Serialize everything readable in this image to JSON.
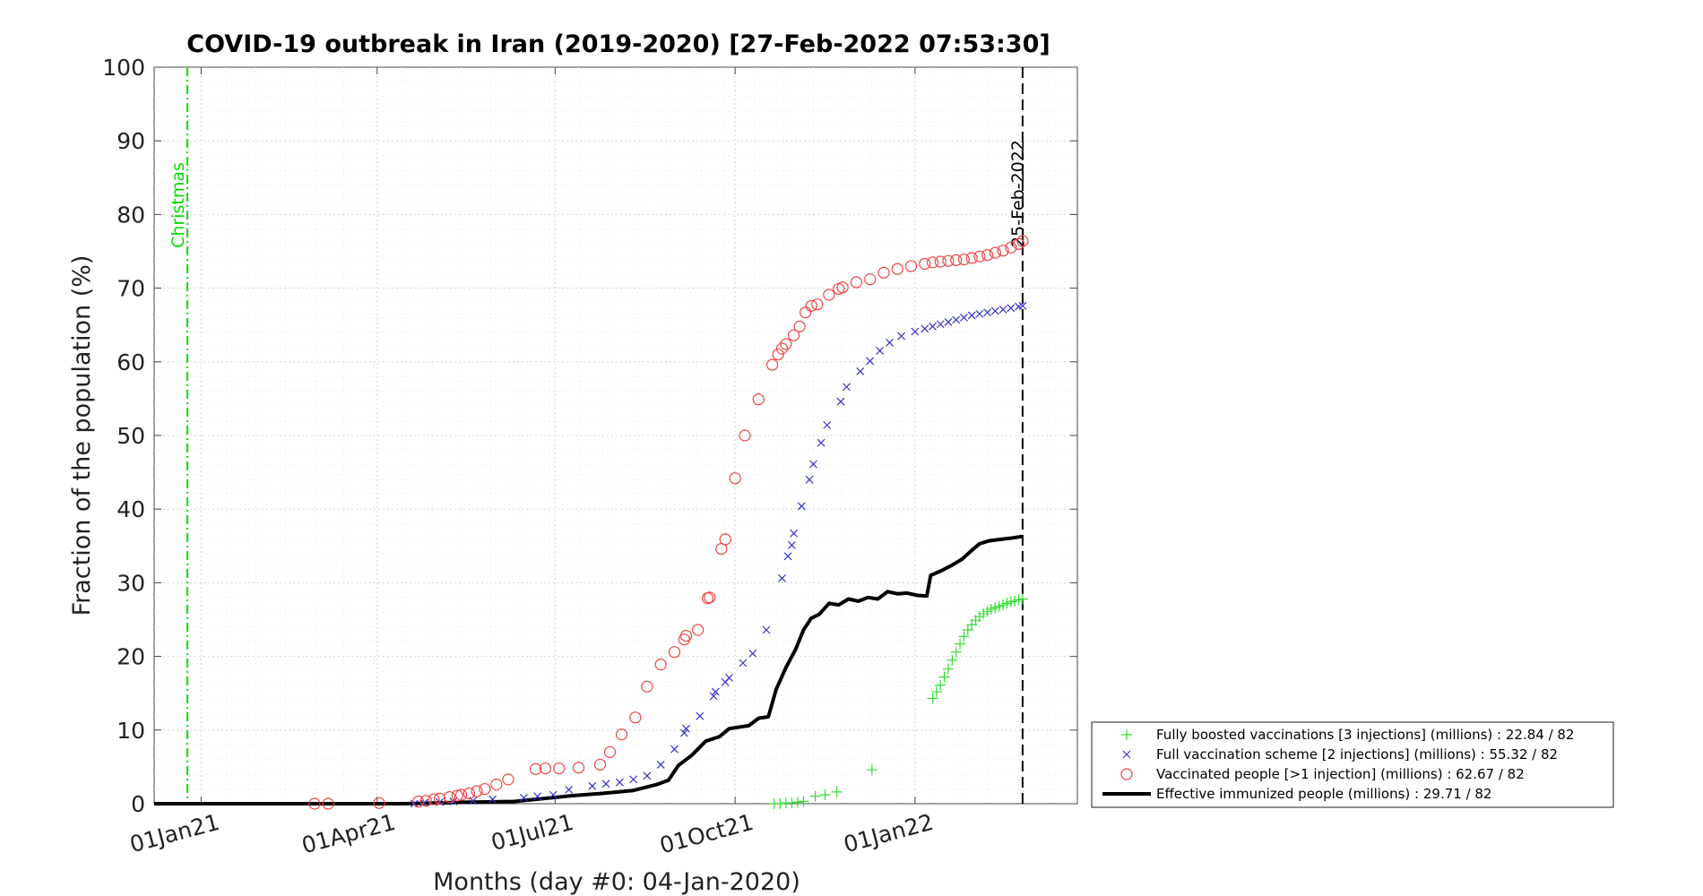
{
  "chart_data": {
    "type": "scatter",
    "title": "COVID-19 outbreak in Iran (2019-2020) [27-Feb-2022 07:53:30]",
    "xlabel": "Months (day #0: 04-Jan-2020)",
    "ylabel": "Fraction of the population (%)",
    "xlim": [
      "2020-12-08",
      "2022-03-25"
    ],
    "ylim": [
      0,
      100
    ],
    "grid": true,
    "legend_position": "outside-bottom-right",
    "x_ticks": [
      {
        "label": "01Jan21",
        "date": "2021-01-01"
      },
      {
        "label": "01Apr21",
        "date": "2021-04-01"
      },
      {
        "label": "01Jul21",
        "date": "2021-07-01"
      },
      {
        "label": "01Oct21",
        "date": "2021-10-01"
      },
      {
        "label": "01Jan22",
        "date": "2022-01-01"
      }
    ],
    "y_ticks": [
      0,
      10,
      20,
      30,
      40,
      50,
      60,
      70,
      80,
      90,
      100
    ],
    "annotations": [
      {
        "label": "Christmas",
        "date": "2020-12-25",
        "style": "dash-dot",
        "color": "#00dd00"
      },
      {
        "label": "25-Feb-2022",
        "date": "2022-02-25",
        "style": "dashed",
        "color": "#000000"
      }
    ],
    "series": [
      {
        "name": "Fully boosted vaccinations [3 injections] (millions) : 22.84 / 82",
        "marker": "plus",
        "color": "#33dd33",
        "points": [
          [
            "2021-10-21",
            0.0
          ],
          [
            "2021-10-24",
            0.0
          ],
          [
            "2021-10-27",
            0.1
          ],
          [
            "2021-10-30",
            0.1
          ],
          [
            "2021-11-02",
            0.2
          ],
          [
            "2021-11-05",
            0.3
          ],
          [
            "2021-11-11",
            1.0
          ],
          [
            "2021-11-16",
            1.2
          ],
          [
            "2021-11-22",
            1.6
          ],
          [
            "2021-12-10",
            4.6
          ],
          [
            "2022-01-10",
            14.3
          ],
          [
            "2022-01-12",
            15.2
          ],
          [
            "2022-01-14",
            16.1
          ],
          [
            "2022-01-16",
            17.2
          ],
          [
            "2022-01-18",
            18.3
          ],
          [
            "2022-01-20",
            19.5
          ],
          [
            "2022-01-22",
            20.6
          ],
          [
            "2022-01-24",
            21.7
          ],
          [
            "2022-01-26",
            22.7
          ],
          [
            "2022-01-28",
            23.6
          ],
          [
            "2022-01-30",
            24.3
          ],
          [
            "2022-02-01",
            24.9
          ],
          [
            "2022-02-03",
            25.4
          ],
          [
            "2022-02-05",
            25.8
          ],
          [
            "2022-02-07",
            26.1
          ],
          [
            "2022-02-09",
            26.4
          ],
          [
            "2022-02-11",
            26.6
          ],
          [
            "2022-02-13",
            26.8
          ],
          [
            "2022-02-15",
            27.0
          ],
          [
            "2022-02-17",
            27.2
          ],
          [
            "2022-02-19",
            27.4
          ],
          [
            "2022-02-21",
            27.5
          ],
          [
            "2022-02-23",
            27.7
          ],
          [
            "2022-02-25",
            27.8
          ]
        ]
      },
      {
        "name": "Full vaccination scheme [2 injections] (millions) : 55.32 / 82",
        "marker": "cross",
        "color": "#3333cc",
        "points": [
          [
            "2021-04-20",
            0.0
          ],
          [
            "2021-04-25",
            0.1
          ],
          [
            "2021-05-03",
            0.2
          ],
          [
            "2021-05-10",
            0.3
          ],
          [
            "2021-05-20",
            0.4
          ],
          [
            "2021-05-30",
            0.6
          ],
          [
            "2021-06-15",
            0.8
          ],
          [
            "2021-06-22",
            1.0
          ],
          [
            "2021-06-30",
            1.2
          ],
          [
            "2021-07-08",
            1.9
          ],
          [
            "2021-07-20",
            2.4
          ],
          [
            "2021-07-27",
            2.7
          ],
          [
            "2021-08-03",
            2.9
          ],
          [
            "2021-08-10",
            3.3
          ],
          [
            "2021-08-17",
            3.8
          ],
          [
            "2021-08-24",
            5.3
          ],
          [
            "2021-08-31",
            7.4
          ],
          [
            "2021-09-05",
            9.6
          ],
          [
            "2021-09-06",
            10.2
          ],
          [
            "2021-09-13",
            11.9
          ],
          [
            "2021-09-20",
            14.6
          ],
          [
            "2021-09-21",
            15.2
          ],
          [
            "2021-09-26",
            16.5
          ],
          [
            "2021-09-28",
            17.1
          ],
          [
            "2021-10-05",
            19.1
          ],
          [
            "2021-10-10",
            20.4
          ],
          [
            "2021-10-17",
            23.6
          ],
          [
            "2021-10-25",
            30.6
          ],
          [
            "2021-10-28",
            33.6
          ],
          [
            "2021-10-30",
            35.1
          ],
          [
            "2021-10-31",
            36.7
          ],
          [
            "2021-11-04",
            40.4
          ],
          [
            "2021-11-08",
            44.0
          ],
          [
            "2021-11-10",
            46.1
          ],
          [
            "2021-11-14",
            49.0
          ],
          [
            "2021-11-17",
            51.4
          ],
          [
            "2021-11-24",
            54.6
          ],
          [
            "2021-11-27",
            56.6
          ],
          [
            "2021-12-04",
            58.7
          ],
          [
            "2021-12-09",
            60.1
          ],
          [
            "2021-12-14",
            61.5
          ],
          [
            "2021-12-19",
            62.6
          ],
          [
            "2021-12-25",
            63.5
          ],
          [
            "2022-01-01",
            64.1
          ],
          [
            "2022-01-06",
            64.5
          ],
          [
            "2022-01-10",
            64.8
          ],
          [
            "2022-01-14",
            65.1
          ],
          [
            "2022-01-18",
            65.4
          ],
          [
            "2022-01-22",
            65.7
          ],
          [
            "2022-01-26",
            66.0
          ],
          [
            "2022-01-30",
            66.3
          ],
          [
            "2022-02-03",
            66.5
          ],
          [
            "2022-02-07",
            66.7
          ],
          [
            "2022-02-11",
            66.9
          ],
          [
            "2022-02-15",
            67.1
          ],
          [
            "2022-02-19",
            67.3
          ],
          [
            "2022-02-23",
            67.5
          ],
          [
            "2022-02-25",
            67.6
          ]
        ]
      },
      {
        "name": "Vaccinated people [>1 injection] (millions) : 62.67 / 82",
        "marker": "circle",
        "color": "#ee4444",
        "points": [
          [
            "2021-02-28",
            0.0
          ],
          [
            "2021-03-07",
            0.0
          ],
          [
            "2021-04-02",
            0.1
          ],
          [
            "2021-04-22",
            0.3
          ],
          [
            "2021-04-26",
            0.4
          ],
          [
            "2021-04-30",
            0.6
          ],
          [
            "2021-05-03",
            0.7
          ],
          [
            "2021-05-08",
            0.9
          ],
          [
            "2021-05-12",
            1.1
          ],
          [
            "2021-05-14",
            1.2
          ],
          [
            "2021-05-18",
            1.4
          ],
          [
            "2021-05-22",
            1.7
          ],
          [
            "2021-05-26",
            2.0
          ],
          [
            "2021-06-01",
            2.6
          ],
          [
            "2021-06-07",
            3.3
          ],
          [
            "2021-06-21",
            4.7
          ],
          [
            "2021-06-26",
            4.8
          ],
          [
            "2021-07-03",
            4.8
          ],
          [
            "2021-07-13",
            4.9
          ],
          [
            "2021-07-24",
            5.3
          ],
          [
            "2021-07-29",
            7.0
          ],
          [
            "2021-08-04",
            9.4
          ],
          [
            "2021-08-11",
            11.7
          ],
          [
            "2021-08-17",
            15.9
          ],
          [
            "2021-08-24",
            18.9
          ],
          [
            "2021-08-31",
            20.6
          ],
          [
            "2021-09-05",
            22.3
          ],
          [
            "2021-09-06",
            22.8
          ],
          [
            "2021-09-12",
            23.6
          ],
          [
            "2021-09-17",
            27.9
          ],
          [
            "2021-09-18",
            28.0
          ],
          [
            "2021-09-24",
            34.6
          ],
          [
            "2021-09-26",
            35.9
          ],
          [
            "2021-10-01",
            44.2
          ],
          [
            "2021-10-06",
            50.0
          ],
          [
            "2021-10-13",
            54.9
          ],
          [
            "2021-10-20",
            59.6
          ],
          [
            "2021-10-23",
            61.0
          ],
          [
            "2021-10-25",
            61.8
          ],
          [
            "2021-10-27",
            62.4
          ],
          [
            "2021-10-31",
            63.6
          ],
          [
            "2021-11-03",
            64.8
          ],
          [
            "2021-11-06",
            66.7
          ],
          [
            "2021-11-09",
            67.6
          ],
          [
            "2021-11-12",
            67.8
          ],
          [
            "2021-11-18",
            69.1
          ],
          [
            "2021-11-23",
            69.9
          ],
          [
            "2021-11-25",
            70.1
          ],
          [
            "2021-12-02",
            70.8
          ],
          [
            "2021-12-09",
            71.2
          ],
          [
            "2021-12-16",
            72.1
          ],
          [
            "2021-12-23",
            72.6
          ],
          [
            "2021-12-30",
            73.0
          ],
          [
            "2022-01-06",
            73.3
          ],
          [
            "2022-01-10",
            73.5
          ],
          [
            "2022-01-14",
            73.6
          ],
          [
            "2022-01-18",
            73.7
          ],
          [
            "2022-01-22",
            73.8
          ],
          [
            "2022-01-26",
            73.9
          ],
          [
            "2022-01-30",
            74.1
          ],
          [
            "2022-02-03",
            74.3
          ],
          [
            "2022-02-07",
            74.5
          ],
          [
            "2022-02-11",
            74.8
          ],
          [
            "2022-02-15",
            75.1
          ],
          [
            "2022-02-19",
            75.5
          ],
          [
            "2022-02-23",
            76.0
          ],
          [
            "2022-02-25",
            76.4
          ]
        ]
      },
      {
        "name": "Effective immunized people (millions) : 29.71 / 82",
        "marker": "line",
        "color": "#000000",
        "points": [
          [
            "2020-12-08",
            0.0
          ],
          [
            "2021-04-15",
            0.0
          ],
          [
            "2021-05-15",
            0.2
          ],
          [
            "2021-06-10",
            0.3
          ],
          [
            "2021-06-25",
            0.7
          ],
          [
            "2021-07-10",
            1.1
          ],
          [
            "2021-07-25",
            1.4
          ],
          [
            "2021-08-10",
            1.8
          ],
          [
            "2021-08-22",
            2.6
          ],
          [
            "2021-08-28",
            3.2
          ],
          [
            "2021-09-02",
            5.2
          ],
          [
            "2021-09-09",
            6.6
          ],
          [
            "2021-09-16",
            8.5
          ],
          [
            "2021-09-23",
            9.1
          ],
          [
            "2021-09-28",
            10.2
          ],
          [
            "2021-10-08",
            10.6
          ],
          [
            "2021-10-13",
            11.6
          ],
          [
            "2021-10-18",
            11.8
          ],
          [
            "2021-10-22",
            15.5
          ],
          [
            "2021-10-27",
            18.5
          ],
          [
            "2021-11-01",
            21.0
          ],
          [
            "2021-11-05",
            23.6
          ],
          [
            "2021-11-09",
            25.2
          ],
          [
            "2021-11-13",
            25.7
          ],
          [
            "2021-11-18",
            27.2
          ],
          [
            "2021-11-23",
            27.0
          ],
          [
            "2021-11-28",
            27.8
          ],
          [
            "2021-12-03",
            27.5
          ],
          [
            "2021-12-08",
            28.0
          ],
          [
            "2021-12-13",
            27.8
          ],
          [
            "2021-12-18",
            28.8
          ],
          [
            "2021-12-23",
            28.5
          ],
          [
            "2021-12-28",
            28.6
          ],
          [
            "2022-01-02",
            28.3
          ],
          [
            "2022-01-07",
            28.2
          ],
          [
            "2022-01-09",
            31.0
          ],
          [
            "2022-01-15",
            31.7
          ],
          [
            "2022-01-20",
            32.4
          ],
          [
            "2022-01-25",
            33.2
          ],
          [
            "2022-01-30",
            34.4
          ],
          [
            "2022-02-03",
            35.3
          ],
          [
            "2022-02-08",
            35.7
          ],
          [
            "2022-02-14",
            35.9
          ],
          [
            "2022-02-20",
            36.1
          ],
          [
            "2022-02-25",
            36.3
          ]
        ]
      }
    ]
  }
}
